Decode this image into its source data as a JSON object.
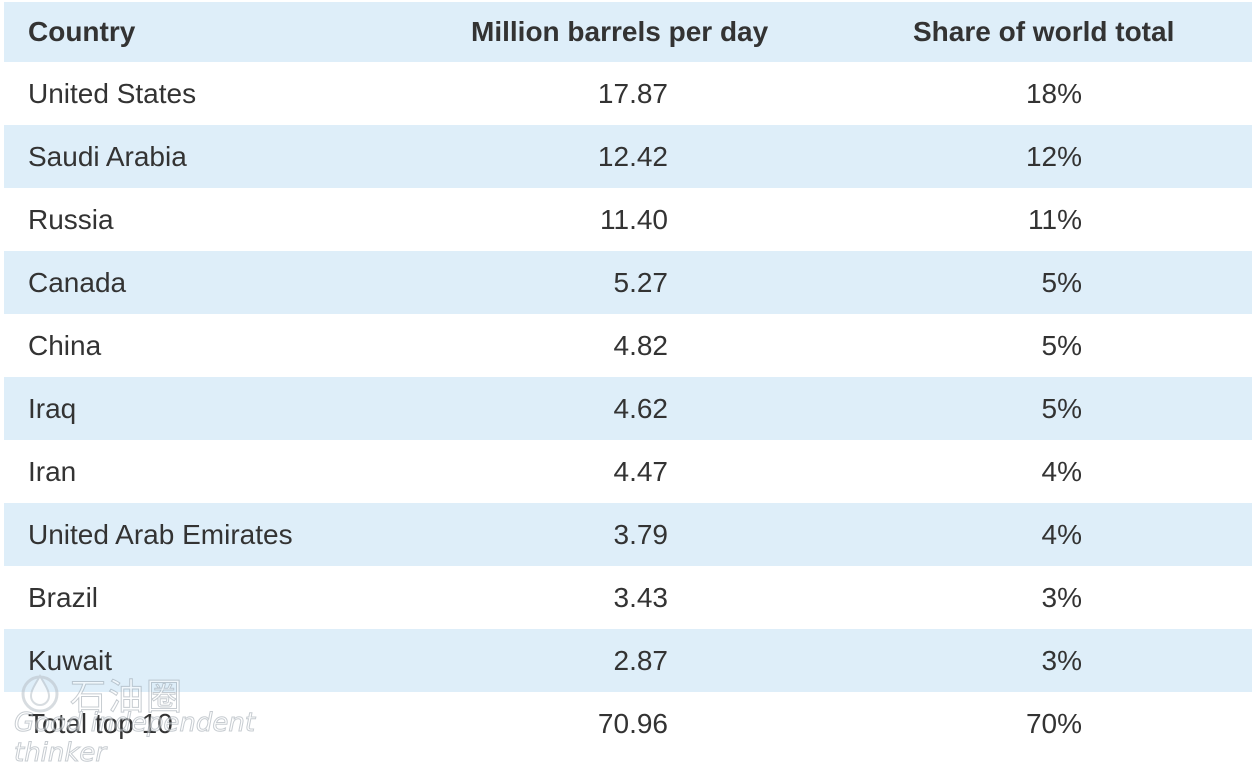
{
  "chart_data": {
    "type": "table",
    "columns": [
      "Country",
      "Million barrels per day",
      "Share of world total"
    ],
    "rows": [
      {
        "country": "United States",
        "mbpd": "17.87",
        "share": "18%"
      },
      {
        "country": "Saudi Arabia",
        "mbpd": "12.42",
        "share": "12%"
      },
      {
        "country": "Russia",
        "mbpd": "11.40",
        "share": "11%"
      },
      {
        "country": "Canada",
        "mbpd": "5.27",
        "share": "5%"
      },
      {
        "country": "China",
        "mbpd": "4.82",
        "share": "5%"
      },
      {
        "country": "Iraq",
        "mbpd": "4.62",
        "share": "5%"
      },
      {
        "country": "Iran",
        "mbpd": "4.47",
        "share": "4%"
      },
      {
        "country": "United Arab Emirates",
        "mbpd": "3.79",
        "share": "4%"
      },
      {
        "country": "Brazil",
        "mbpd": "3.43",
        "share": "3%"
      },
      {
        "country": "Kuwait",
        "mbpd": "2.87",
        "share": "3%"
      },
      {
        "country": "Total top 10",
        "mbpd": "70.96",
        "share": "70%"
      }
    ],
    "row_shading": "alternating",
    "header_color": "#deeef9",
    "shade_color": "#deeef9",
    "text_color": "#333333"
  },
  "watermark": {
    "logo_icon": "oil-drop-logo-icon",
    "brand_text": "石油圈",
    "tagline": "Good independent thinker"
  }
}
